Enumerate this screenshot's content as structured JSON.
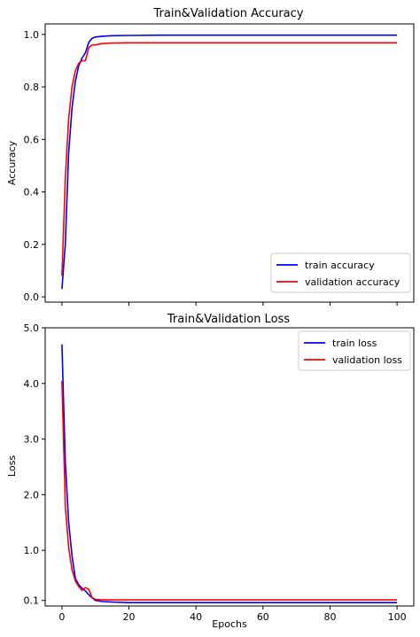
{
  "chart_data": [
    {
      "type": "line",
      "title": "Train&Validation Accuracy",
      "xlabel": "",
      "ylabel": "Accuracy",
      "xlim": [
        -5,
        105
      ],
      "ylim": [
        -0.02,
        1.04
      ],
      "x_ticks": [
        0,
        20,
        40,
        60,
        80,
        100
      ],
      "x_ticklabels_shown": false,
      "y_ticks": [
        0.0,
        0.2,
        0.4,
        0.6,
        0.8,
        1.0
      ],
      "y_ticklabels": [
        "0.0",
        "0.2",
        "0.4",
        "0.6",
        "0.8",
        "1.0"
      ],
      "legend_position": "lower-right",
      "grid": false,
      "series": [
        {
          "name": "train accuracy",
          "color": "#0000ff",
          "x": [
            0,
            1,
            2,
            3,
            4,
            5,
            6,
            7,
            8,
            9,
            10,
            12,
            15,
            20,
            30,
            40,
            50,
            60,
            70,
            80,
            90,
            100
          ],
          "y": [
            0.03,
            0.2,
            0.55,
            0.72,
            0.82,
            0.88,
            0.91,
            0.93,
            0.97,
            0.985,
            0.99,
            0.993,
            0.995,
            0.996,
            0.997,
            0.997,
            0.997,
            0.997,
            0.997,
            0.997,
            0.997,
            0.997
          ]
        },
        {
          "name": "validation accuracy",
          "color": "#ff0000",
          "x": [
            0,
            1,
            2,
            3,
            4,
            5,
            6,
            7,
            8,
            9,
            10,
            12,
            15,
            20,
            30,
            40,
            50,
            60,
            70,
            80,
            90,
            100
          ],
          "y": [
            0.08,
            0.45,
            0.68,
            0.8,
            0.86,
            0.89,
            0.9,
            0.9,
            0.95,
            0.96,
            0.96,
            0.965,
            0.967,
            0.968,
            0.968,
            0.968,
            0.968,
            0.968,
            0.968,
            0.968,
            0.968,
            0.968
          ]
        }
      ]
    },
    {
      "type": "line",
      "title": "Train&Validation Loss",
      "xlabel": "Epochs",
      "ylabel": "Loss",
      "xlim": [
        -5,
        105
      ],
      "ylim": [
        0.0,
        5.0
      ],
      "x_ticks": [
        0,
        20,
        40,
        60,
        80,
        100
      ],
      "x_ticklabels": [
        "0",
        "20",
        "40",
        "60",
        "80",
        "100"
      ],
      "y_ticks": [
        0.1,
        1.0,
        2.0,
        3.0,
        4.0,
        5.0
      ],
      "y_ticklabels": [
        "0.1",
        "1.0",
        "2.0",
        "3.0",
        "4.0",
        "5.0"
      ],
      "legend_position": "upper-right",
      "grid": false,
      "series": [
        {
          "name": "train loss",
          "color": "#0000ff",
          "x": [
            0,
            1,
            2,
            3,
            4,
            5,
            6,
            7,
            8,
            9,
            10,
            12,
            15,
            20,
            30,
            40,
            50,
            60,
            70,
            80,
            90,
            100
          ],
          "y": [
            4.7,
            2.6,
            1.5,
            0.9,
            0.5,
            0.38,
            0.32,
            0.27,
            0.2,
            0.15,
            0.1,
            0.08,
            0.07,
            0.06,
            0.06,
            0.06,
            0.06,
            0.06,
            0.06,
            0.06,
            0.06,
            0.06
          ]
        },
        {
          "name": "validation loss",
          "color": "#ff0000",
          "x": [
            0,
            1,
            2,
            3,
            4,
            5,
            6,
            7,
            8,
            9,
            10,
            12,
            15,
            20,
            30,
            40,
            50,
            60,
            70,
            80,
            90,
            100
          ],
          "y": [
            4.05,
            1.8,
            1.05,
            0.65,
            0.45,
            0.35,
            0.28,
            0.33,
            0.3,
            0.15,
            0.12,
            0.11,
            0.11,
            0.11,
            0.11,
            0.11,
            0.11,
            0.11,
            0.11,
            0.11,
            0.11,
            0.11
          ]
        }
      ]
    }
  ]
}
